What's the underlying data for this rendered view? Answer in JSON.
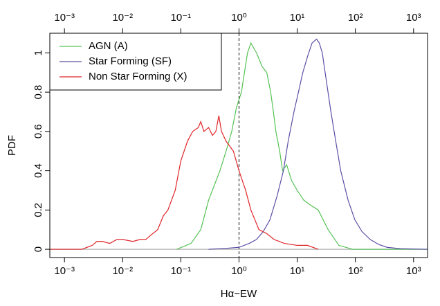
{
  "chart_data": {
    "type": "line",
    "xlabel": "Hα−EW",
    "ylabel": "PDF",
    "xscale": "log",
    "xlim": [
      0.00056,
      1740
    ],
    "ylim": [
      -0.042,
      1.1
    ],
    "xticks": [
      {
        "value": 0.001,
        "label": "10⁻³"
      },
      {
        "value": 0.01,
        "label": "10⁻²"
      },
      {
        "value": 0.1,
        "label": "10⁻¹"
      },
      {
        "value": 1,
        "label": "10⁰"
      },
      {
        "value": 10,
        "label": "10¹"
      },
      {
        "value": 100,
        "label": "10²"
      },
      {
        "value": 1000,
        "label": "10³"
      }
    ],
    "yticks": [
      0,
      0.2,
      0.4,
      0.6,
      0.8,
      1
    ],
    "vline": 1,
    "legend": "upper left",
    "series": [
      {
        "name": "AGN (A)",
        "color": "#55c255",
        "x": [
          0.085,
          0.15,
          0.22,
          0.3,
          0.47,
          0.6,
          0.75,
          0.9,
          1.1,
          1.4,
          1.6,
          2.0,
          2.5,
          3.0,
          3.5,
          3.9,
          4.3,
          5.0,
          5.6,
          6.6,
          8,
          10,
          13,
          16,
          23,
          34,
          52,
          90,
          1740
        ],
        "values": [
          0,
          0.03,
          0.1,
          0.25,
          0.4,
          0.5,
          0.6,
          0.72,
          0.8,
          1.0,
          1.05,
          1.0,
          0.93,
          0.9,
          0.8,
          0.7,
          0.6,
          0.5,
          0.4,
          0.43,
          0.35,
          0.3,
          0.25,
          0.23,
          0.2,
          0.1,
          0.02,
          0,
          0
        ]
      },
      {
        "name": "Star Forming (SF)",
        "color": "#5a50a5",
        "x": [
          0.3,
          0.6,
          1,
          1.5,
          2,
          2.6,
          3.4,
          4.5,
          5.8,
          7,
          8.8,
          10.5,
          12.5,
          15,
          18,
          21.5,
          24,
          27,
          32,
          38,
          46,
          56,
          75,
          98,
          130,
          180,
          250,
          350,
          600,
          1740
        ],
        "values": [
          0,
          0.005,
          0.01,
          0.03,
          0.05,
          0.09,
          0.15,
          0.27,
          0.4,
          0.55,
          0.7,
          0.8,
          0.9,
          0.98,
          1.05,
          1.07,
          1.05,
          1.0,
          0.85,
          0.7,
          0.55,
          0.4,
          0.25,
          0.15,
          0.09,
          0.05,
          0.025,
          0.01,
          0.003,
          0
        ]
      },
      {
        "name": "Non Star Forming (X)",
        "color": "#e02428",
        "x": [
          0.00056,
          0.002,
          0.003,
          0.0036,
          0.0045,
          0.006,
          0.008,
          0.01,
          0.015,
          0.02,
          0.025,
          0.03,
          0.04,
          0.05,
          0.06,
          0.08,
          0.1,
          0.13,
          0.16,
          0.2,
          0.22,
          0.25,
          0.3,
          0.35,
          0.4,
          0.45,
          0.5,
          0.6,
          0.8,
          1.0,
          1.3,
          1.6,
          2.2,
          3,
          4,
          6,
          10,
          15,
          23
        ],
        "values": [
          0,
          0,
          0.02,
          0.04,
          0.04,
          0.03,
          0.05,
          0.05,
          0.04,
          0.05,
          0.05,
          0.07,
          0.1,
          0.17,
          0.2,
          0.3,
          0.45,
          0.55,
          0.6,
          0.62,
          0.65,
          0.6,
          0.62,
          0.58,
          0.6,
          0.68,
          0.6,
          0.55,
          0.5,
          0.4,
          0.3,
          0.2,
          0.1,
          0.08,
          0.05,
          0.03,
          0.02,
          0.02,
          0
        ]
      }
    ]
  }
}
